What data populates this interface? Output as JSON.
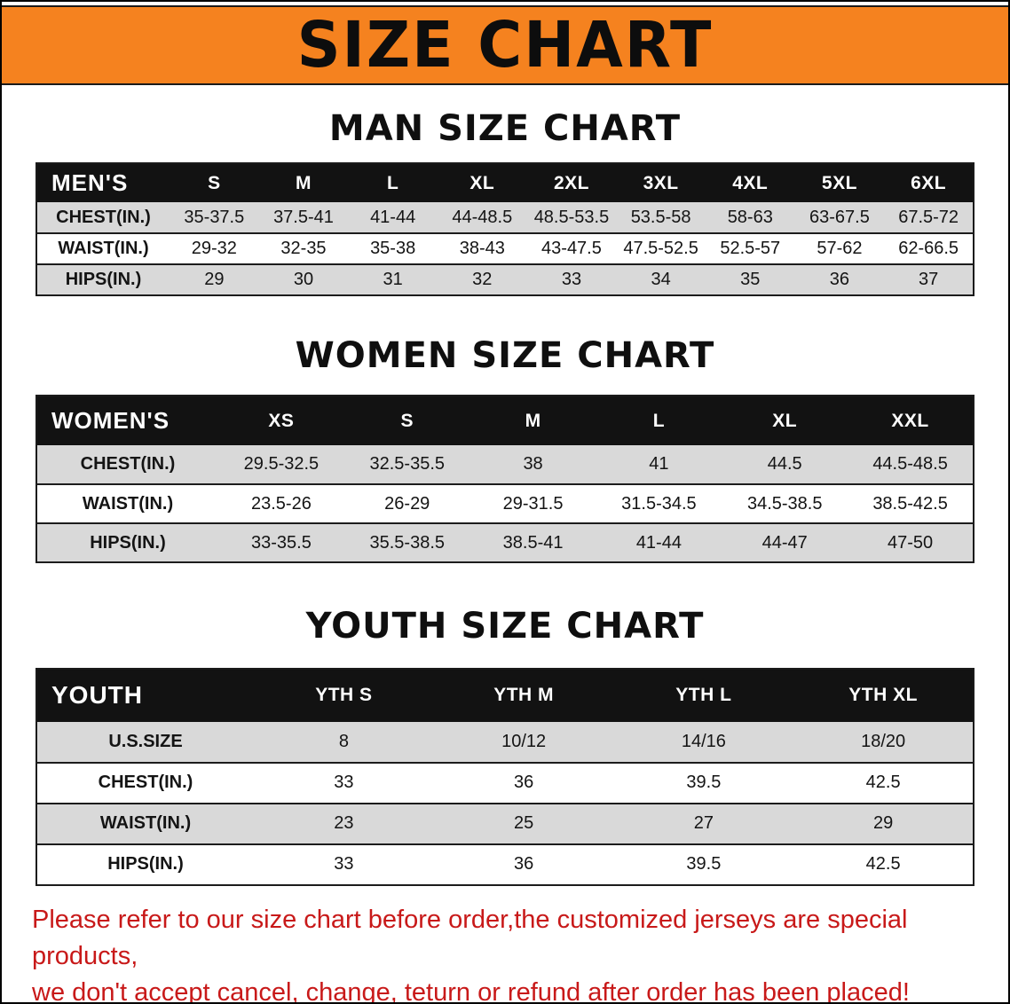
{
  "banner": {
    "title": "SIZE CHART"
  },
  "sections": [
    {
      "heading": "MAN SIZE CHART",
      "table": {
        "header": [
          "MEN'S",
          "S",
          "M",
          "L",
          "XL",
          "2XL",
          "3XL",
          "4XL",
          "5XL",
          "6XL"
        ],
        "rows": [
          [
            "CHEST(IN.)",
            "35-37.5",
            "37.5-41",
            "41-44",
            "44-48.5",
            "48.5-53.5",
            "53.5-58",
            "58-63",
            "63-67.5",
            "67.5-72"
          ],
          [
            "WAIST(IN.)",
            "29-32",
            "32-35",
            "35-38",
            "38-43",
            "43-47.5",
            "47.5-52.5",
            "52.5-57",
            "57-62",
            "62-66.5"
          ],
          [
            "HIPS(IN.)",
            "29",
            "30",
            "31",
            "32",
            "33",
            "34",
            "35",
            "36",
            "37"
          ]
        ]
      }
    },
    {
      "heading": "WOMEN SIZE CHART",
      "table": {
        "header": [
          "WOMEN'S",
          "XS",
          "S",
          "M",
          "L",
          "XL",
          "XXL"
        ],
        "rows": [
          [
            "CHEST(IN.)",
            "29.5-32.5",
            "32.5-35.5",
            "38",
            "41",
            "44.5",
            "44.5-48.5"
          ],
          [
            "WAIST(IN.)",
            "23.5-26",
            "26-29",
            "29-31.5",
            "31.5-34.5",
            "34.5-38.5",
            "38.5-42.5"
          ],
          [
            "HIPS(IN.)",
            "33-35.5",
            "35.5-38.5",
            "38.5-41",
            "41-44",
            "44-47",
            "47-50"
          ]
        ]
      }
    },
    {
      "heading": "YOUTH SIZE CHART",
      "table": {
        "header": [
          "YOUTH",
          "YTH S",
          "YTH M",
          "YTH L",
          "YTH XL"
        ],
        "rows": [
          [
            "U.S.SIZE",
            "8",
            "10/12",
            "14/16",
            "18/20"
          ],
          [
            "CHEST(IN.)",
            "33",
            "36",
            "39.5",
            "42.5"
          ],
          [
            "WAIST(IN.)",
            "23",
            "25",
            "27",
            "29"
          ],
          [
            "HIPS(IN.)",
            "33",
            "36",
            "39.5",
            "42.5"
          ]
        ]
      }
    }
  ],
  "footer": {
    "line1": "Please refer to our size chart before order,the customized jerseys are special products,",
    "line2": "we don't accept cancel, change, teturn or refund after order has been placed!"
  },
  "colors": {
    "banner_bg": "#F5821F",
    "table_header_bg": "#121212",
    "row_stripe": "#D9D9D9",
    "note_red": "#C81919"
  }
}
